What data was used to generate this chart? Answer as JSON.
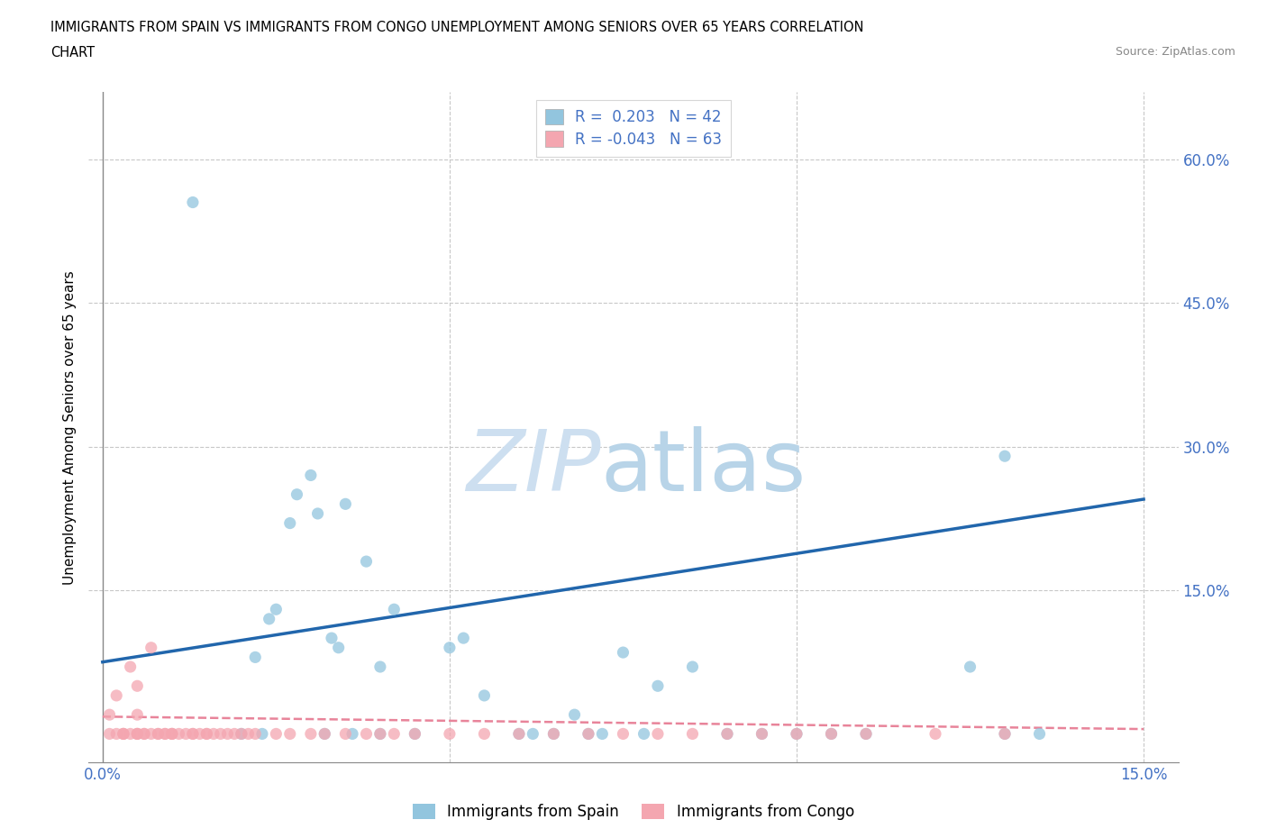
{
  "title_line1": "IMMIGRANTS FROM SPAIN VS IMMIGRANTS FROM CONGO UNEMPLOYMENT AMONG SENIORS OVER 65 YEARS CORRELATION",
  "title_line2": "CHART",
  "source": "Source: ZipAtlas.com",
  "ylabel": "Unemployment Among Seniors over 65 years",
  "spain_R": 0.203,
  "spain_N": 42,
  "congo_R": -0.043,
  "congo_N": 63,
  "spain_color": "#92c5de",
  "congo_color": "#f4a6b0",
  "spain_line_color": "#2166ac",
  "congo_line_color": "#e8849a",
  "xlim": [
    -0.002,
    0.155
  ],
  "ylim": [
    -0.03,
    0.67
  ],
  "xticks": [
    0.0,
    0.05,
    0.1,
    0.15
  ],
  "yticks": [
    0.0,
    0.15,
    0.3,
    0.45,
    0.6
  ],
  "spain_x": [
    0.013,
    0.02,
    0.022,
    0.023,
    0.024,
    0.025,
    0.027,
    0.028,
    0.03,
    0.031,
    0.032,
    0.033,
    0.034,
    0.035,
    0.036,
    0.038,
    0.04,
    0.04,
    0.042,
    0.045,
    0.05,
    0.052,
    0.055,
    0.06,
    0.062,
    0.065,
    0.068,
    0.07,
    0.072,
    0.075,
    0.078,
    0.08,
    0.085,
    0.09,
    0.095,
    0.1,
    0.105,
    0.11,
    0.125,
    0.13,
    0.13,
    0.135
  ],
  "spain_y": [
    0.555,
    0.0,
    0.08,
    0.0,
    0.12,
    0.13,
    0.22,
    0.25,
    0.27,
    0.23,
    0.0,
    0.1,
    0.09,
    0.24,
    0.0,
    0.18,
    0.0,
    0.07,
    0.13,
    0.0,
    0.09,
    0.1,
    0.04,
    0.0,
    0.0,
    0.0,
    0.02,
    0.0,
    0.0,
    0.085,
    0.0,
    0.05,
    0.07,
    0.0,
    0.0,
    0.0,
    0.0,
    0.0,
    0.07,
    0.0,
    0.29,
    0.0
  ],
  "congo_x": [
    0.001,
    0.001,
    0.002,
    0.002,
    0.003,
    0.003,
    0.003,
    0.004,
    0.004,
    0.005,
    0.005,
    0.005,
    0.005,
    0.005,
    0.006,
    0.006,
    0.007,
    0.007,
    0.008,
    0.008,
    0.009,
    0.009,
    0.01,
    0.01,
    0.01,
    0.011,
    0.012,
    0.013,
    0.013,
    0.014,
    0.015,
    0.015,
    0.016,
    0.017,
    0.018,
    0.019,
    0.02,
    0.021,
    0.022,
    0.025,
    0.027,
    0.03,
    0.032,
    0.035,
    0.038,
    0.04,
    0.042,
    0.045,
    0.05,
    0.055,
    0.06,
    0.065,
    0.07,
    0.075,
    0.08,
    0.085,
    0.09,
    0.095,
    0.1,
    0.105,
    0.11,
    0.12,
    0.13
  ],
  "congo_y": [
    0.0,
    0.02,
    0.0,
    0.04,
    0.0,
    0.0,
    0.0,
    0.0,
    0.07,
    0.0,
    0.0,
    0.0,
    0.02,
    0.05,
    0.0,
    0.0,
    0.0,
    0.09,
    0.0,
    0.0,
    0.0,
    0.0,
    0.0,
    0.0,
    0.0,
    0.0,
    0.0,
    0.0,
    0.0,
    0.0,
    0.0,
    0.0,
    0.0,
    0.0,
    0.0,
    0.0,
    0.0,
    0.0,
    0.0,
    0.0,
    0.0,
    0.0,
    0.0,
    0.0,
    0.0,
    0.0,
    0.0,
    0.0,
    0.0,
    0.0,
    0.0,
    0.0,
    0.0,
    0.0,
    0.0,
    0.0,
    0.0,
    0.0,
    0.0,
    0.0,
    0.0,
    0.0,
    0.0
  ]
}
